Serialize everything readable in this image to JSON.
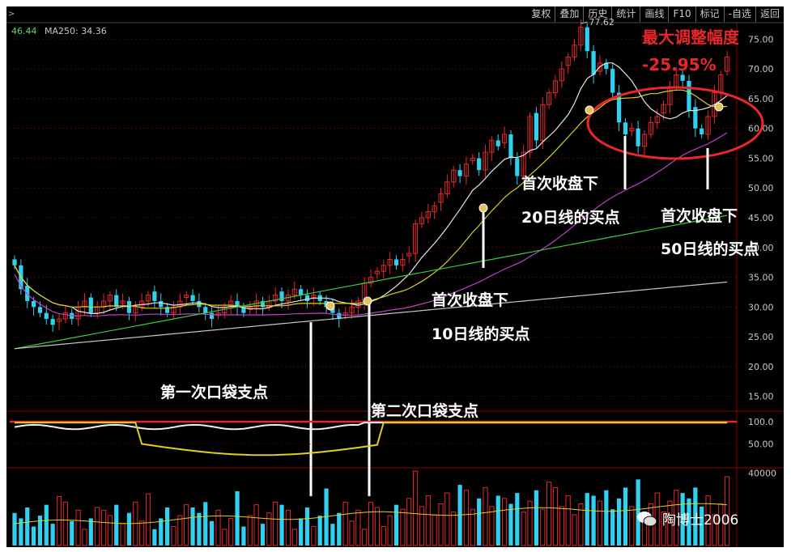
{
  "toolbar": [
    "复权",
    "叠加",
    "历史",
    "统计",
    "画线",
    "F10",
    "标记",
    "-自选",
    "返回"
  ],
  "legend": {
    "value": "46.44",
    "ma250": "MA250: 34.36"
  },
  "annotations": {
    "title": "最大调整幅度",
    "drawdown": "-25.95%",
    "ma20_l1": "首次收盘下",
    "ma20_l2": "20日线的买点",
    "ma50_l1": "首次收盘下",
    "ma50_l2": "50日线的买点",
    "ma10_l1": "首次收盘下",
    "ma10_l2": "10日线的买点",
    "pocket1": "第一次口袋支点",
    "pocket2": "第二次口袋支点"
  },
  "watermark": "陶博士2006",
  "colors": {
    "up": "#e8262b",
    "down": "#30d0f0",
    "ma10": "#e6e6e6",
    "ma20": "#d8d020",
    "ma50": "#c040c8",
    "ma120": "#3cc83c",
    "ma250": "#c8c8c8",
    "grid": "#8b0000"
  },
  "chart_data": [
    {
      "type": "candlestick",
      "ylim": [
        12.5,
        77.5
      ],
      "yticks": [
        "75.00",
        "70.00",
        "65.00",
        "60.00",
        "55.00",
        "50.00",
        "45.00",
        "40.00",
        "35.00",
        "30.00",
        "25.00",
        "20.00",
        "15.00"
      ],
      "peak_label": "77.62",
      "close": [
        37,
        33,
        31,
        30,
        29,
        28,
        27,
        28,
        29,
        28,
        30,
        31,
        29,
        30,
        31,
        32,
        30,
        31,
        29,
        30,
        31,
        32,
        31,
        30,
        29,
        30,
        31,
        32,
        31,
        30,
        29,
        28,
        29,
        30,
        31,
        30,
        29,
        30,
        31,
        30,
        31,
        32,
        31,
        32,
        33,
        32,
        31,
        32,
        31,
        30,
        29,
        28,
        29,
        30,
        31,
        34,
        35,
        36,
        37,
        38,
        37,
        38,
        39,
        44,
        45,
        46,
        47,
        49,
        51,
        53,
        52,
        54,
        55,
        53,
        56,
        58,
        57,
        59,
        55,
        52,
        56,
        62,
        58,
        64,
        66,
        68,
        70,
        72,
        74,
        77,
        73,
        69,
        71,
        70,
        66,
        61,
        59,
        60,
        57,
        59,
        61,
        62,
        64,
        67,
        69,
        68,
        63,
        60,
        59,
        62,
        66,
        69,
        72
      ]
    },
    {
      "type": "line",
      "ylim": [
        0,
        120
      ],
      "yticks": [
        "100.0",
        "50.00"
      ]
    },
    {
      "type": "bar",
      "ylim": [
        0,
        42000
      ],
      "yticks": [
        "40000"
      ]
    }
  ]
}
